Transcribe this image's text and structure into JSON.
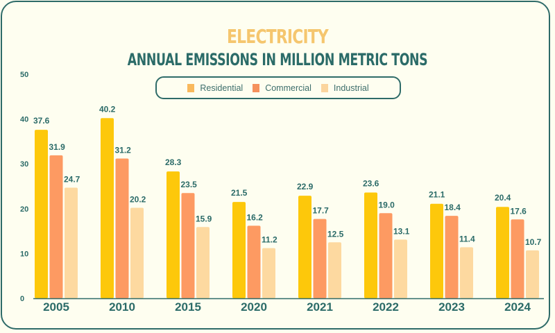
{
  "chart_data": {
    "type": "bar",
    "title": "ELECTRICITY",
    "subtitle": "ANNUAL EMISSIONS IN MILLION METRIC TONS",
    "xlabel": "",
    "ylabel": "",
    "ylim": [
      0,
      50
    ],
    "yticks": [
      0,
      10,
      20,
      30,
      40,
      50
    ],
    "grid": false,
    "legend_position": "top-center",
    "categories": [
      "2005",
      "2010",
      "2015",
      "2020",
      "2021",
      "2022",
      "2023",
      "2024"
    ],
    "series": [
      {
        "name": "Residential",
        "color": "#FDC80B",
        "values": [
          37.6,
          40.2,
          28.3,
          21.5,
          22.9,
          23.6,
          21.1,
          20.4
        ]
      },
      {
        "name": "Commercial",
        "color": "#FD9A62",
        "values": [
          31.9,
          31.2,
          23.5,
          16.2,
          17.7,
          19.0,
          18.4,
          17.6
        ]
      },
      {
        "name": "Industrial",
        "color": "#FDD9A0",
        "values": [
          24.7,
          20.2,
          15.9,
          11.2,
          12.5,
          13.1,
          11.4,
          10.7
        ]
      }
    ],
    "value_labels": [
      [
        "37.6",
        "40.2",
        "28.3",
        "21.5",
        "22.9",
        "23.6",
        "21.1",
        "20.4"
      ],
      [
        "31.9",
        "31.2",
        "23.5",
        "16.2",
        "17.7",
        "19.0",
        "18.4",
        "17.6"
      ],
      [
        "24.7",
        "20.2",
        "15.9",
        "11.2",
        "12.5",
        "13.1",
        "11.4",
        "10.7"
      ]
    ]
  },
  "legend": {
    "items": [
      {
        "label": "Residential",
        "color": "#F9B95C"
      },
      {
        "label": "Commercial",
        "color": "#F5915C"
      },
      {
        "label": "Industrial",
        "color": "#FBD59E"
      }
    ]
  },
  "colors": {
    "frame": "#2E6B68",
    "text": "#2B6B68",
    "title": "#F5C66E",
    "background": "#FEFEF0"
  }
}
